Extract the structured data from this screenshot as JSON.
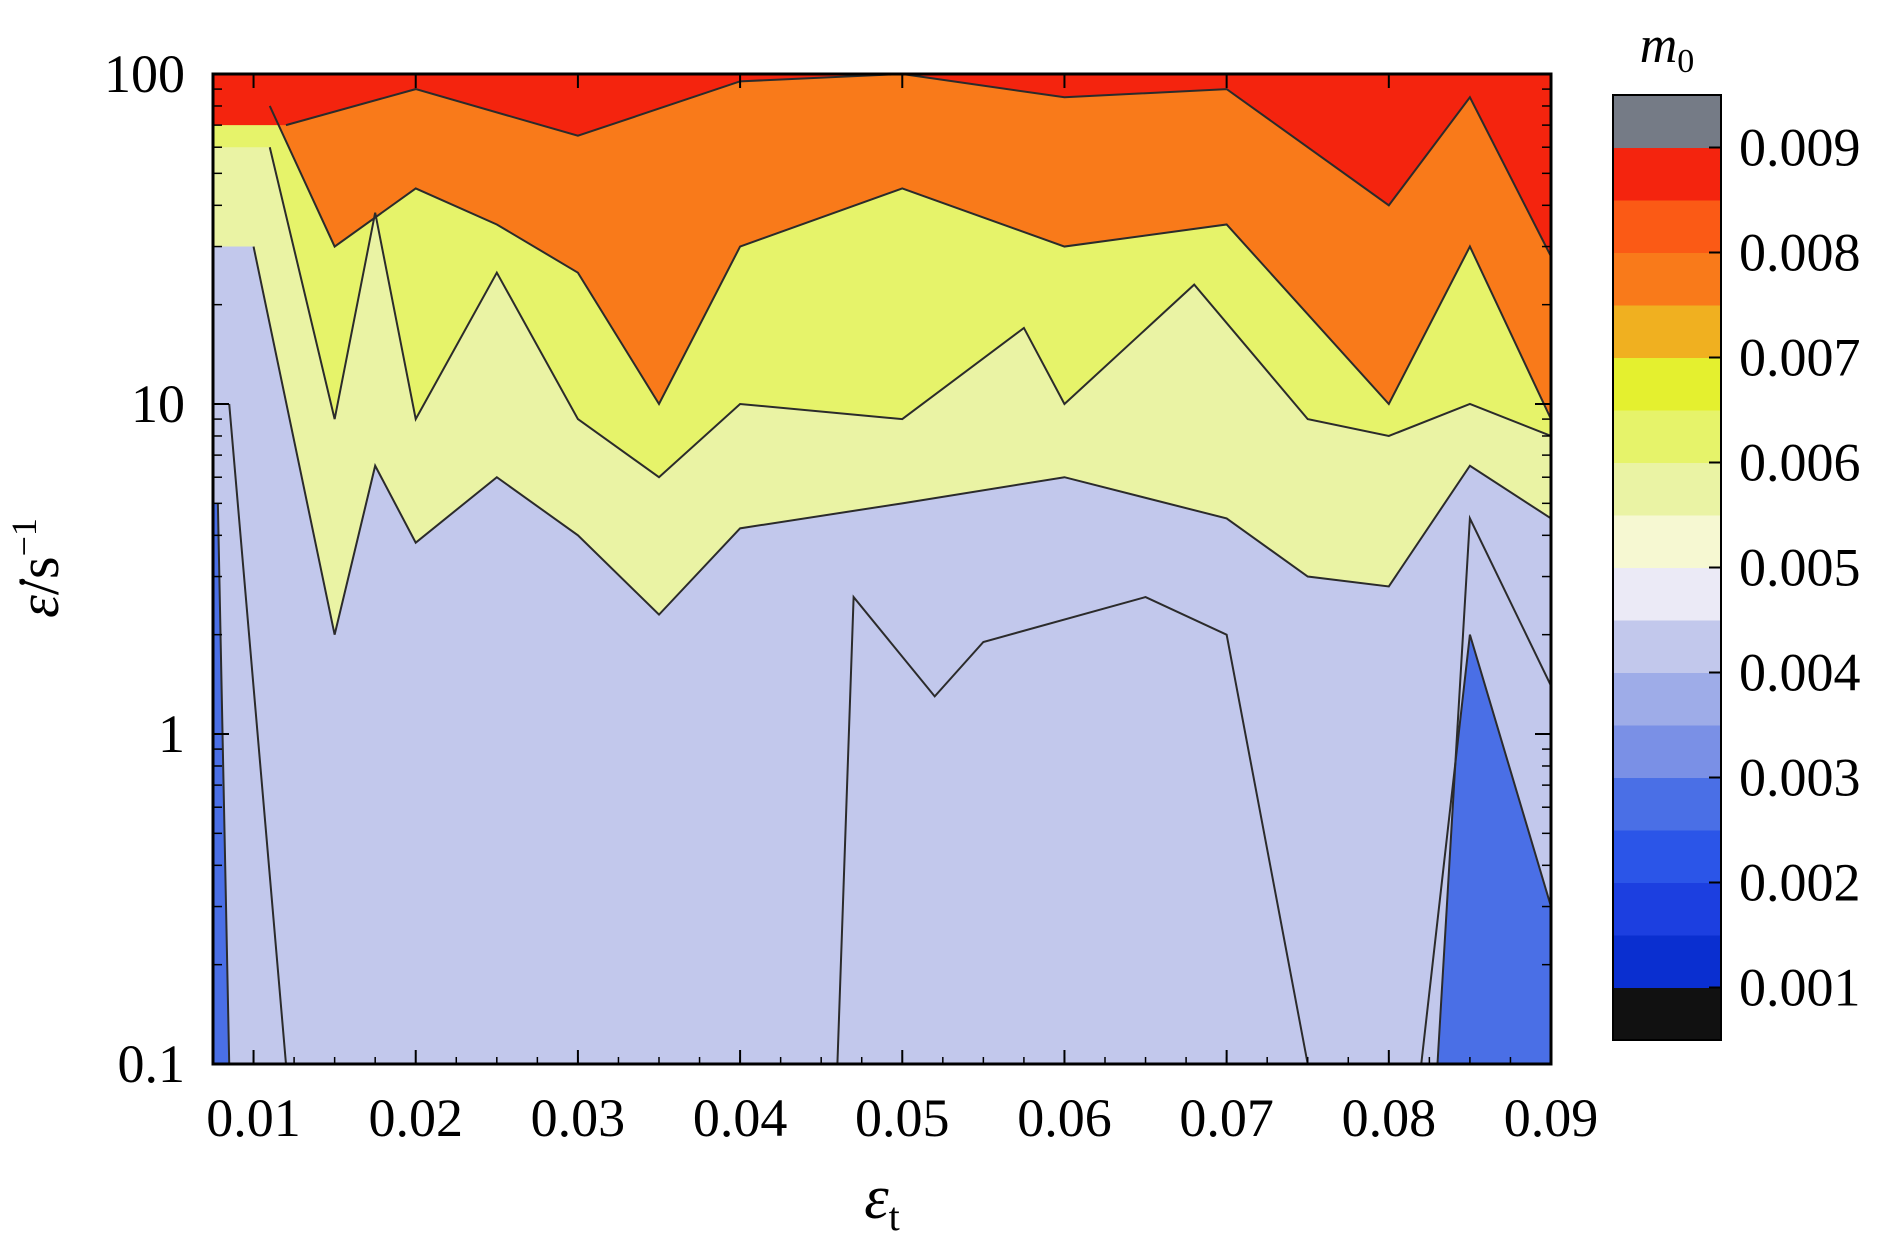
{
  "chart_data": {
    "type": "heatmap",
    "subtype": "filled-contour",
    "title": "",
    "xlabel_symbol": "ε",
    "xlabel_subscript": "t",
    "ylabel_symbol": "ε̇",
    "ylabel_unit": "/s",
    "ylabel_exponent": "−1",
    "colorbar_title_symbol": "m",
    "colorbar_title_subscript": "0",
    "x_range": [
      0.0075,
      0.09
    ],
    "y_range": [
      0.1,
      100
    ],
    "y_scale": "log",
    "grid": false,
    "x_ticks": [
      0.01,
      0.02,
      0.03,
      0.04,
      0.05,
      0.06,
      0.07,
      0.08,
      0.09
    ],
    "x_tick_labels": [
      "0.01",
      "0.02",
      "0.03",
      "0.04",
      "0.05",
      "0.06",
      "0.07",
      "0.08",
      "0.09"
    ],
    "y_ticks": [
      0.1,
      1,
      10,
      100
    ],
    "y_tick_labels": [
      "0.1",
      "1",
      "10",
      "100"
    ],
    "colorbar": {
      "placement": "right",
      "tick_labels": [
        "0.001",
        "0.002",
        "0.003",
        "0.004",
        "0.005",
        "0.006",
        "0.007",
        "0.008",
        "0.009"
      ],
      "levels": [
        0.001,
        0.0015,
        0.002,
        0.0025,
        0.003,
        0.0035,
        0.004,
        0.0045,
        0.005,
        0.0055,
        0.006,
        0.0065,
        0.007,
        0.0075,
        0.008,
        0.0085,
        0.009,
        0.0095
      ],
      "colors": [
        "#111111",
        "#0a2fd0",
        "#1c3fe0",
        "#2b55e8",
        "#4a6fe6",
        "#7a90e6",
        "#9eace8",
        "#c2c8ec",
        "#ebeaf6",
        "#f6f8d2",
        "#eaf3a4",
        "#e6f36a",
        "#e4f02f",
        "#f0b020",
        "#f97a1a",
        "#fb5a15",
        "#f4240e",
        "#757b86"
      ]
    },
    "regions": [
      {
        "level_from": 0.0085,
        "level_to": 0.0095,
        "description_value": "top band near ε̇≈100 s⁻¹",
        "boundary_y": [
          [
            0.012,
            70
          ],
          [
            0.02,
            90
          ],
          [
            0.03,
            65
          ],
          [
            0.04,
            95
          ],
          [
            0.05,
            100
          ],
          [
            0.06,
            85
          ],
          [
            0.07,
            90
          ],
          [
            0.08,
            40
          ],
          [
            0.085,
            85
          ],
          [
            0.09,
            28
          ]
        ]
      },
      {
        "level_from": 0.0075,
        "level_to": 0.0085,
        "boundary_y": [
          [
            0.011,
            80
          ],
          [
            0.015,
            30
          ],
          [
            0.02,
            45
          ],
          [
            0.025,
            35
          ],
          [
            0.03,
            25
          ],
          [
            0.035,
            10
          ],
          [
            0.04,
            30
          ],
          [
            0.05,
            45
          ],
          [
            0.06,
            30
          ],
          [
            0.07,
            35
          ],
          [
            0.08,
            10
          ],
          [
            0.085,
            30
          ],
          [
            0.09,
            9
          ]
        ]
      },
      {
        "level_from": 0.0065,
        "level_to": 0.0075,
        "boundary_y": [
          [
            0.011,
            60
          ],
          [
            0.015,
            9
          ],
          [
            0.0175,
            38
          ],
          [
            0.02,
            9
          ],
          [
            0.025,
            25
          ],
          [
            0.03,
            9
          ],
          [
            0.035,
            6
          ],
          [
            0.04,
            10
          ],
          [
            0.05,
            9
          ],
          [
            0.0575,
            17
          ],
          [
            0.06,
            10
          ],
          [
            0.068,
            23
          ],
          [
            0.075,
            9
          ],
          [
            0.08,
            8
          ],
          [
            0.085,
            10
          ],
          [
            0.09,
            8
          ]
        ]
      },
      {
        "level_from": 0.0055,
        "level_to": 0.0065,
        "boundary_y": [
          [
            0.01,
            30
          ],
          [
            0.015,
            2
          ],
          [
            0.0175,
            6.5
          ],
          [
            0.02,
            3.8
          ],
          [
            0.025,
            6
          ],
          [
            0.03,
            4
          ],
          [
            0.035,
            2.3
          ],
          [
            0.04,
            4.2
          ],
          [
            0.05,
            5
          ],
          [
            0.06,
            6
          ],
          [
            0.07,
            4.5
          ],
          [
            0.075,
            3
          ],
          [
            0.08,
            2.8
          ],
          [
            0.085,
            6.5
          ],
          [
            0.09,
            4.5
          ]
        ]
      },
      {
        "level_from": 0.0045,
        "level_to": 0.0055,
        "boundary_y": [
          [
            0.0085,
            10
          ],
          [
            0.012,
            0.1
          ],
          [
            0.046,
            0.1
          ],
          [
            0.047,
            2.6
          ],
          [
            0.052,
            1.3
          ],
          [
            0.055,
            1.9
          ],
          [
            0.065,
            2.6
          ],
          [
            0.07,
            2
          ],
          [
            0.075,
            0.1
          ],
          [
            0.083,
            0.1
          ],
          [
            0.085,
            4.5
          ],
          [
            0.09,
            1.4
          ]
        ]
      },
      {
        "level_from": 0.0025,
        "level_to": 0.0045,
        "description_value": "blue pocket near ε_t≈0.085 and left edge",
        "boundary_y": [
          [
            0.0078,
            5
          ],
          [
            0.0085,
            0.1
          ],
          [
            0.082,
            0.1
          ],
          [
            0.085,
            2
          ],
          [
            0.09,
            0.3
          ]
        ]
      }
    ]
  }
}
